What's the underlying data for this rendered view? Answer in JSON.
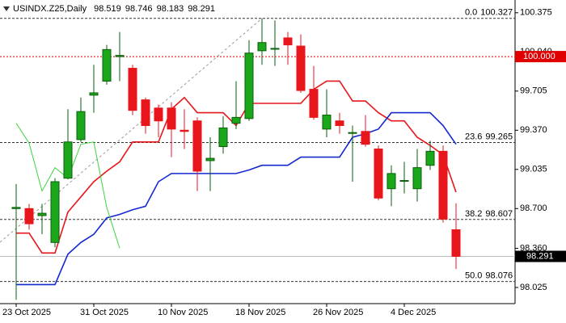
{
  "chart_data": {
    "type": "candlestick",
    "symbol": "USINDX.Z25,Daily",
    "categories": [
      "23 Oct 2025",
      null,
      null,
      null,
      null,
      null,
      "31 Oct 2025",
      null,
      null,
      null,
      null,
      null,
      "10 Nov 2025",
      null,
      null,
      null,
      null,
      null,
      "18 Nov 2025",
      null,
      null,
      null,
      null,
      null,
      "26 Nov 2025",
      null,
      null,
      null,
      null,
      null,
      "4 Dec 2025",
      null,
      null,
      null,
      null
    ],
    "open": [
      98.7,
      98.7,
      98.64,
      98.41,
      98.96,
      99.29,
      99.67,
      99.79,
      100.0,
      99.9,
      99.63,
      99.56,
      99.56,
      99.37,
      99.45,
      99.11,
      99.23,
      99.43,
      99.47,
      100.05,
      100.07,
      100.16,
      100.09,
      99.72,
      99.38,
      99.45,
      99.35,
      99.36,
      99.21,
      98.87,
      98.94,
      98.87,
      99.07,
      99.19,
      98.519
    ],
    "high": [
      98.91,
      98.74,
      98.74,
      98.96,
      99.55,
      99.65,
      99.93,
      100.1,
      100.21,
      99.93,
      99.65,
      99.59,
      99.61,
      99.55,
      99.48,
      99.31,
      99.49,
      99.79,
      100.14,
      100.327,
      100.31,
      100.21,
      100.19,
      99.92,
      99.72,
      99.52,
      99.41,
      99.5,
      99.24,
      99.07,
      99.1,
      99.21,
      99.28,
      99.24,
      98.746
    ],
    "low": [
      97.92,
      98.52,
      98.48,
      98.37,
      98.95,
      99.27,
      99.52,
      99.76,
      99.79,
      99.5,
      99.34,
      99.31,
      99.14,
      99.21,
      98.85,
      98.85,
      99.17,
      99.38,
      99.45,
      99.93,
      99.92,
      99.93,
      99.69,
      99.46,
      99.31,
      99.34,
      98.93,
      99.23,
      98.77,
      98.72,
      98.83,
      98.76,
      99.03,
      98.58,
      98.183
    ],
    "close": [
      98.71,
      98.57,
      98.66,
      98.93,
      99.27,
      99.53,
      99.69,
      100.06,
      100.01,
      99.54,
      99.41,
      99.45,
      99.38,
      99.36,
      99.02,
      99.13,
      99.39,
      99.48,
      100.03,
      100.12,
      100.07,
      100.1,
      99.71,
      99.48,
      99.5,
      99.41,
      99.35,
      99.25,
      98.79,
      99.0,
      98.94,
      99.05,
      99.19,
      98.61,
      98.291
    ],
    "up_color": "#1aa81a",
    "down_color": "#e8161b",
    "overlays": [
      {
        "color": "#e8161b",
        "values": [
          98.49,
          98.49,
          98.32,
          98.32,
          98.67,
          98.8,
          98.93,
          99.02,
          99.1,
          99.27,
          99.27,
          99.27,
          99.55,
          99.65,
          99.52,
          99.52,
          99.52,
          99.41,
          99.6,
          99.6,
          99.6,
          99.6,
          99.6,
          99.72,
          99.79,
          99.79,
          99.62,
          99.62,
          99.52,
          99.45,
          99.45,
          99.31,
          99.24,
          99.16,
          98.84
        ]
      },
      {
        "color": "#1428d0",
        "values": [
          98.05,
          98.05,
          98.05,
          98.05,
          98.31,
          98.41,
          98.48,
          98.62,
          98.65,
          98.69,
          98.72,
          98.93,
          99.0,
          99.0,
          99.0,
          99.0,
          99.0,
          99.0,
          99.03,
          99.07,
          99.07,
          99.07,
          99.14,
          99.14,
          99.14,
          99.14,
          99.31,
          99.34,
          99.38,
          99.52,
          99.52,
          99.52,
          99.52,
          99.41,
          99.25
        ]
      },
      {
        "color": "#3ad43a",
        "values": [
          99.43,
          99.26,
          98.85,
          99.05,
          98.96,
          99.25,
          99.27,
          98.71,
          98.36,
          null,
          null,
          null,
          null,
          null,
          null,
          null,
          null,
          null,
          null,
          null,
          null,
          null,
          null,
          null,
          null,
          null,
          null,
          null,
          null,
          null,
          null,
          null,
          null,
          null,
          null
        ]
      }
    ],
    "fib": [
      {
        "label": "0.0",
        "value": 100.327
      },
      {
        "label": "23.6",
        "value": 99.265
      },
      {
        "label": "38.2",
        "value": 98.607
      },
      {
        "label": "50.0",
        "value": 98.076
      }
    ],
    "alert": {
      "value": 100,
      "label": "100.000",
      "color": "#e00000"
    },
    "ylim": [
      97.894,
      100.484
    ],
    "yticks": [
      98.025,
      {
        "value": 98.36,
        "label": "98.360"
      },
      {
        "value": 98.7,
        "label": "98.700"
      },
      99.035,
      {
        "value": 99.37,
        "label": "99.370"
      },
      99.705,
      {
        "value": 100.04,
        "label": "100.040"
      },
      100.375
    ]
  }
}
